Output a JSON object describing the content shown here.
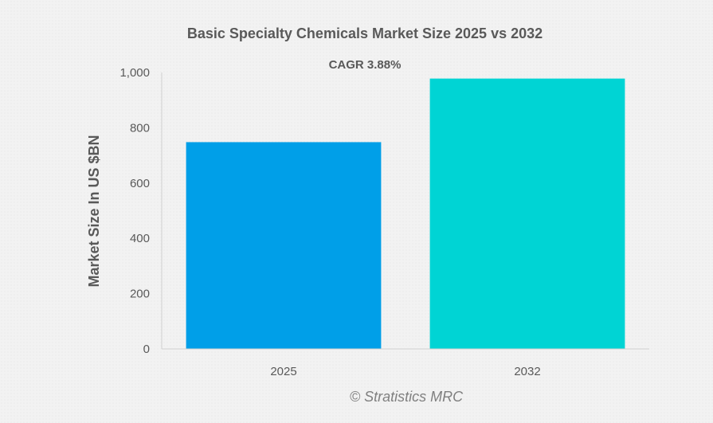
{
  "chart_data": {
    "type": "bar",
    "title": "Basic Specialty Chemicals Market Size 2025 vs 2032",
    "subtitle": "CAGR 3.88%",
    "xlabel": "",
    "ylabel": "Market Size In US $BN",
    "categories": [
      "2025",
      "2032"
    ],
    "values": [
      748,
      978
    ],
    "ylim": [
      0,
      1000
    ],
    "yticks": [
      0,
      200,
      400,
      600,
      800,
      1000
    ],
    "ytick_labels": [
      "0",
      "200",
      "400",
      "600",
      "800",
      "1,000"
    ],
    "grid": false,
    "legend": "none",
    "colors": [
      "#009fe8",
      "#00d4d4"
    ]
  },
  "watermark": "© Stratistics MRC"
}
